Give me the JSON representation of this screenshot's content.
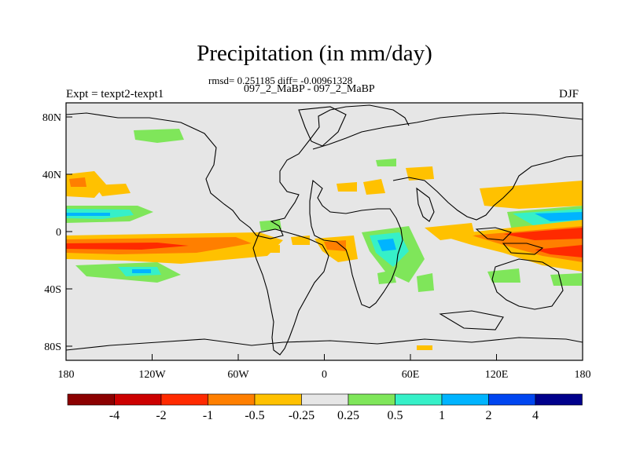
{
  "chart_data": {
    "type": "heatmap",
    "title": "Precipitation (in mm/day)",
    "subtitle_stats": "rmsd= 0.251185 diff= -0.00961328",
    "subtitle_cases": "097_2_MaBP - 097_2_MaBP",
    "left_label": "Expt = texpt2-texpt1",
    "right_label": "DJF",
    "x_axis": {
      "range": [
        -180,
        180
      ],
      "ticks": [
        -180,
        -120,
        -60,
        0,
        60,
        120,
        180
      ],
      "tick_labels": [
        "180",
        "120W",
        "60W",
        "0",
        "60E",
        "120E",
        "180"
      ]
    },
    "y_axis": {
      "range": [
        -90,
        90
      ],
      "ticks": [
        80,
        40,
        0,
        -40,
        -80
      ],
      "tick_labels": [
        "80N",
        "40N",
        "0",
        "40S",
        "80S"
      ]
    },
    "colorbar": {
      "colors": [
        "#8b0000",
        "#cc0000",
        "#ff2a00",
        "#ff7f00",
        "#ffc100",
        "#e6e6e6",
        "#7fe65a",
        "#36f0c8",
        "#00b4ff",
        "#0046f0",
        "#00008b"
      ],
      "labels": [
        "-4",
        "-2",
        "-1",
        "-0.5",
        "-0.25",
        "0.25",
        "0.5",
        "1",
        "2",
        "4"
      ]
    },
    "background_color": "#e6e6e6"
  }
}
